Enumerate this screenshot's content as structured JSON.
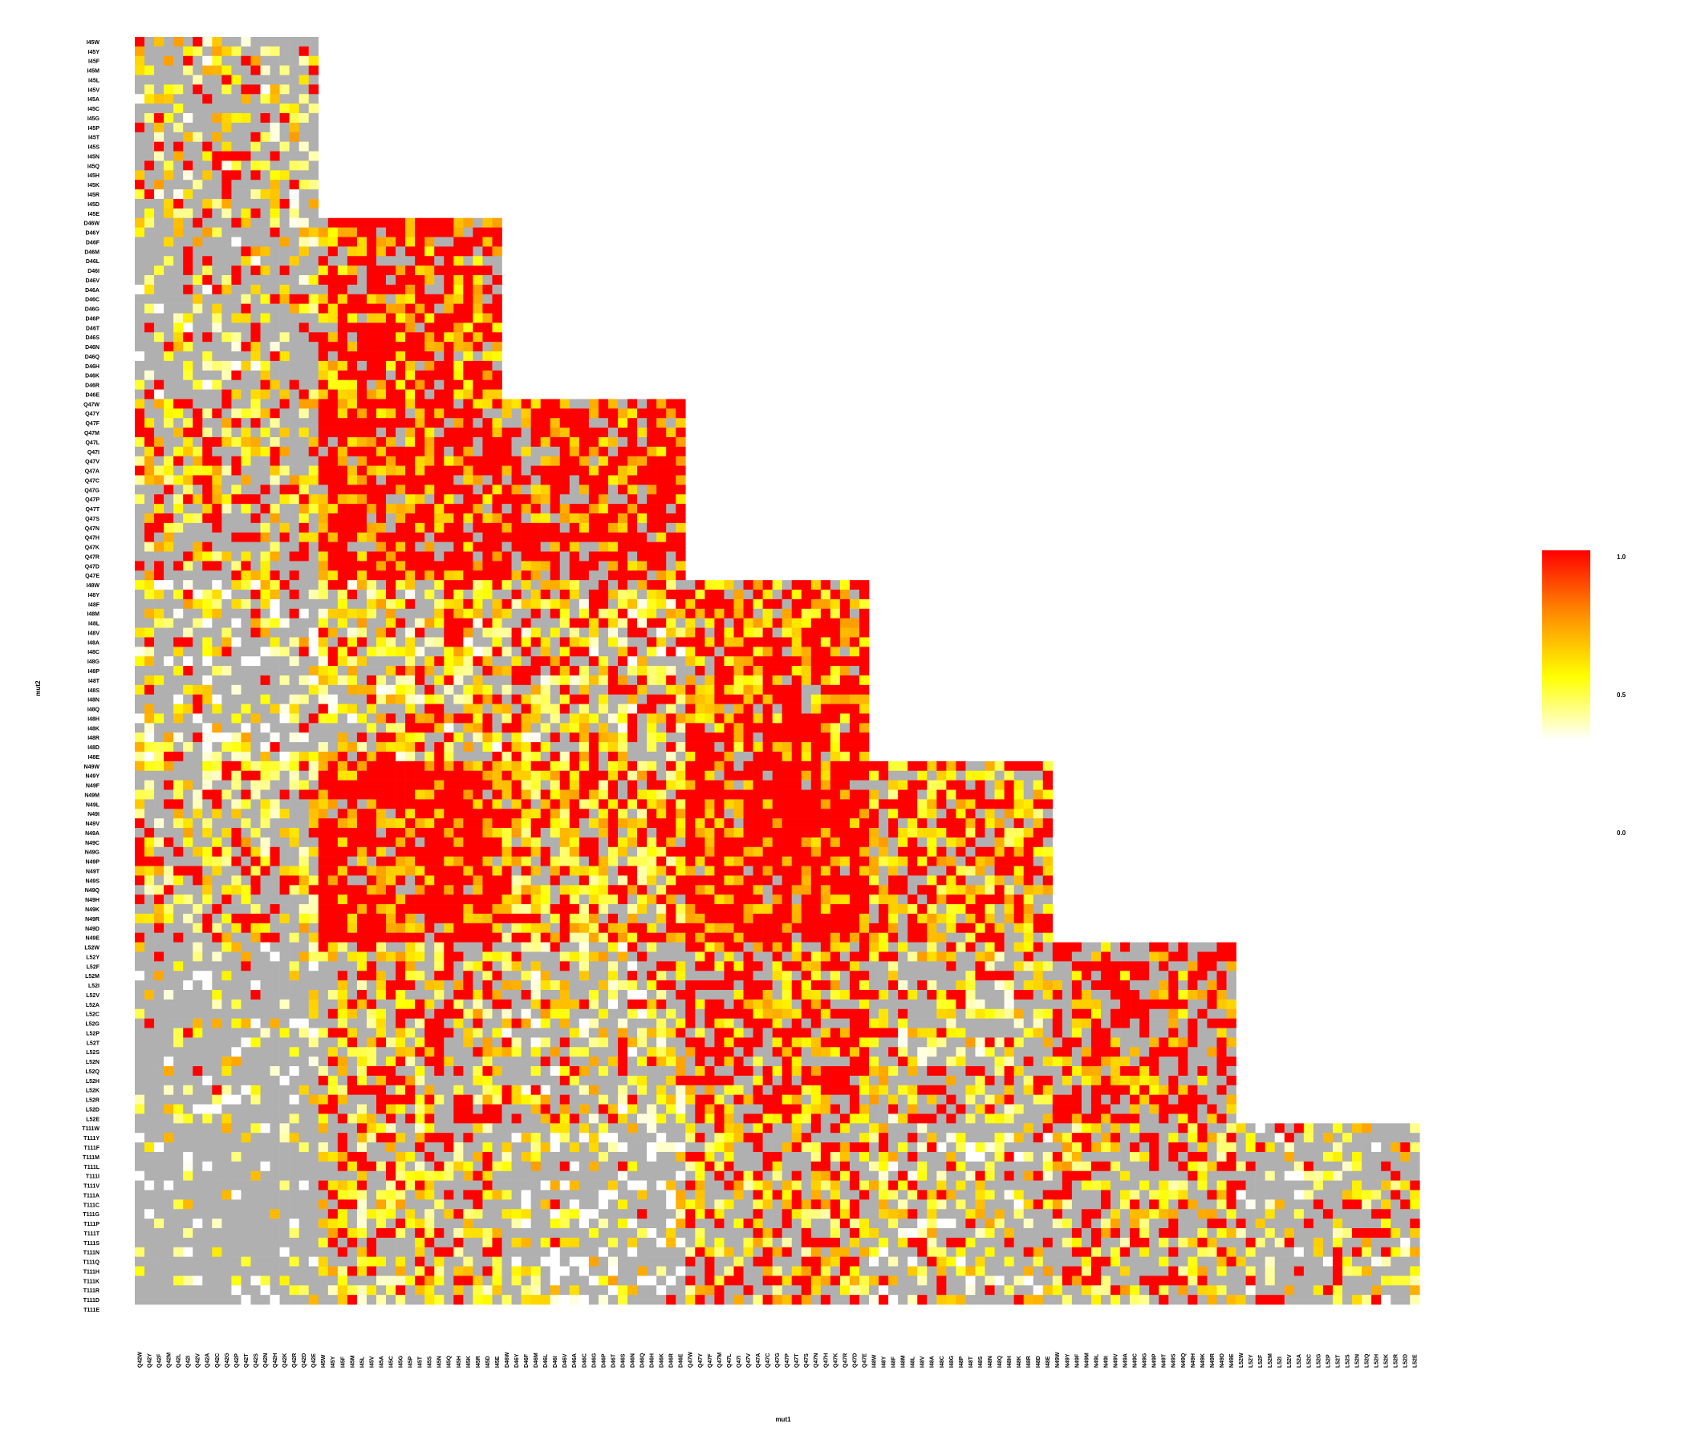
{
  "chart_data": {
    "type": "heatmap",
    "title": "",
    "xlabel": "mut1",
    "ylabel": "mut2",
    "x_categories": [
      "Q42W",
      "Q42Y",
      "Q42F",
      "Q42M",
      "Q42L",
      "Q42I",
      "Q42V",
      "Q42A",
      "Q42C",
      "Q42G",
      "Q42P",
      "Q42T",
      "Q42S",
      "Q42N",
      "Q42H",
      "Q42K",
      "Q42R",
      "Q42D",
      "Q42E",
      "I45W",
      "I45Y",
      "I45F",
      "I45M",
      "I45L",
      "I45V",
      "I45A",
      "I45C",
      "I45G",
      "I45P",
      "I45T",
      "I45S",
      "I45N",
      "I45Q",
      "I45H",
      "I45K",
      "I45R",
      "I45D",
      "I45E",
      "D46W",
      "D46Y",
      "D46F",
      "D46M",
      "D46L",
      "D46I",
      "D46V",
      "D46A",
      "D46C",
      "D46G",
      "D46P",
      "D46T",
      "D46S",
      "D46N",
      "D46Q",
      "D46H",
      "D46K",
      "D46R",
      "D46E",
      "Q47W",
      "Q47Y",
      "Q47F",
      "Q47M",
      "Q47L",
      "Q47I",
      "Q47V",
      "Q47A",
      "Q47C",
      "Q47G",
      "Q47P",
      "Q47T",
      "Q47S",
      "Q47N",
      "Q47H",
      "Q47K",
      "Q47R",
      "Q47D",
      "Q47E",
      "I48W",
      "I48Y",
      "I48F",
      "I48M",
      "I48L",
      "I48V",
      "I48A",
      "I48C",
      "I48G",
      "I48P",
      "I48T",
      "I48S",
      "I48N",
      "I48Q",
      "I48H",
      "I48K",
      "I48R",
      "I48D",
      "I48E",
      "N49W",
      "N49Y",
      "N49F",
      "N49M",
      "N49L",
      "N49I",
      "N49V",
      "N49A",
      "N49C",
      "N49G",
      "N49P",
      "N49T",
      "N49S",
      "N49Q",
      "N49H",
      "N49K",
      "N49R",
      "N49D",
      "N49E",
      "L52W",
      "L52Y",
      "L52F",
      "L52M",
      "L52I",
      "L52V",
      "L52A",
      "L52C",
      "L52G",
      "L52P",
      "L52T",
      "L52S",
      "L52N",
      "L52Q",
      "L52H",
      "L52K",
      "L52R",
      "L52D",
      "L52E"
    ],
    "y_categories": [
      "I45W",
      "I45Y",
      "I45F",
      "I45M",
      "I45L",
      "I45V",
      "I45A",
      "I45C",
      "I45G",
      "I45P",
      "I45T",
      "I45S",
      "I45N",
      "I45Q",
      "I45H",
      "I45K",
      "I45R",
      "I45D",
      "I45E",
      "D46W",
      "D46Y",
      "D46F",
      "D46M",
      "D46L",
      "D46I",
      "D46V",
      "D46A",
      "D46C",
      "D46G",
      "D46P",
      "D46T",
      "D46S",
      "D46N",
      "D46Q",
      "D46H",
      "D46K",
      "D46R",
      "D46E",
      "Q47W",
      "Q47Y",
      "Q47F",
      "Q47M",
      "Q47L",
      "Q47I",
      "Q47V",
      "Q47A",
      "Q47C",
      "Q47G",
      "Q47P",
      "Q47T",
      "Q47S",
      "Q47N",
      "Q47H",
      "Q47K",
      "Q47R",
      "Q47D",
      "Q47E",
      "I48W",
      "I48Y",
      "I48F",
      "I48M",
      "I48L",
      "I48V",
      "I48A",
      "I48C",
      "I48G",
      "I48P",
      "I48T",
      "I48S",
      "I48N",
      "I48Q",
      "I48H",
      "I48K",
      "I48R",
      "I48D",
      "I48E",
      "N49W",
      "N49Y",
      "N49F",
      "N49M",
      "N49L",
      "N49I",
      "N49V",
      "N49A",
      "N49C",
      "N49G",
      "N49P",
      "N49T",
      "N49S",
      "N49Q",
      "N49H",
      "N49K",
      "N49R",
      "N49D",
      "N49E",
      "L52W",
      "L52Y",
      "L52F",
      "L52M",
      "L52I",
      "L52V",
      "L52A",
      "L52C",
      "L52G",
      "L52P",
      "L52T",
      "L52S",
      "L52N",
      "L52Q",
      "L52H",
      "L52K",
      "L52R",
      "L52D",
      "L52E",
      "T111W",
      "T111Y",
      "T111F",
      "T111M",
      "T111L",
      "T111I",
      "T111V",
      "T111A",
      "T111C",
      "T111G",
      "T111P",
      "T111T",
      "T111S",
      "T111N",
      "T111Q",
      "T111H",
      "T111K",
      "T111R",
      "T111D",
      "T111E"
    ],
    "block_order": [
      "Q42",
      "I45",
      "D46",
      "Q47",
      "I48",
      "N49",
      "L52"
    ],
    "row_block_order": [
      "I45",
      "D46",
      "Q47",
      "I48",
      "N49",
      "L52",
      "T111"
    ],
    "row_block_ranges": [
      [
        0,
        18
      ],
      [
        19,
        37
      ],
      [
        38,
        56
      ],
      [
        57,
        75
      ],
      [
        76,
        94
      ],
      [
        95,
        113
      ],
      [
        114,
        132
      ]
    ],
    "col_block_ranges": [
      [
        0,
        18
      ],
      [
        19,
        37
      ],
      [
        38,
        56
      ],
      [
        57,
        75
      ],
      [
        76,
        94
      ],
      [
        95,
        113
      ],
      [
        114,
        132
      ]
    ],
    "block_means": [
      [
        0.45,
        null,
        null,
        null,
        null,
        null,
        null
      ],
      [
        0.4,
        0.75,
        null,
        null,
        null,
        null,
        null
      ],
      [
        0.55,
        0.8,
        0.8,
        null,
        null,
        null,
        null
      ],
      [
        0.3,
        0.45,
        0.45,
        0.7,
        null,
        null,
        null
      ],
      [
        0.5,
        0.85,
        0.55,
        0.85,
        0.6,
        null,
        null
      ],
      [
        0.2,
        0.55,
        0.4,
        0.7,
        0.45,
        0.75,
        null
      ],
      [
        0.15,
        0.5,
        0.2,
        0.55,
        0.35,
        0.55,
        0.4
      ]
    ],
    "block_gray_fraction": [
      [
        0.55,
        1,
        1,
        1,
        1,
        1,
        1
      ],
      [
        0.55,
        0.15,
        1,
        1,
        1,
        1,
        1
      ],
      [
        0.45,
        0.1,
        0.2,
        1,
        1,
        1,
        1
      ],
      [
        0.55,
        0.25,
        0.3,
        0.1,
        1,
        1,
        1
      ],
      [
        0.4,
        0.05,
        0.15,
        0.05,
        0.25,
        1,
        1
      ],
      [
        0.75,
        0.35,
        0.45,
        0.25,
        0.45,
        0.35,
        1
      ],
      [
        0.8,
        0.4,
        0.55,
        0.4,
        0.5,
        0.45,
        0.55
      ]
    ],
    "color_scale": {
      "min": 0.0,
      "max": 1.0,
      "colors": [
        "#ffffff",
        "#ffff00",
        "#ff8c00",
        "#ff0000"
      ],
      "missing_color": "#b0b0b0",
      "tick_labels": [
        "1.0",
        "0.5",
        "0.0"
      ]
    },
    "grid": false,
    "legend_position": "right"
  }
}
